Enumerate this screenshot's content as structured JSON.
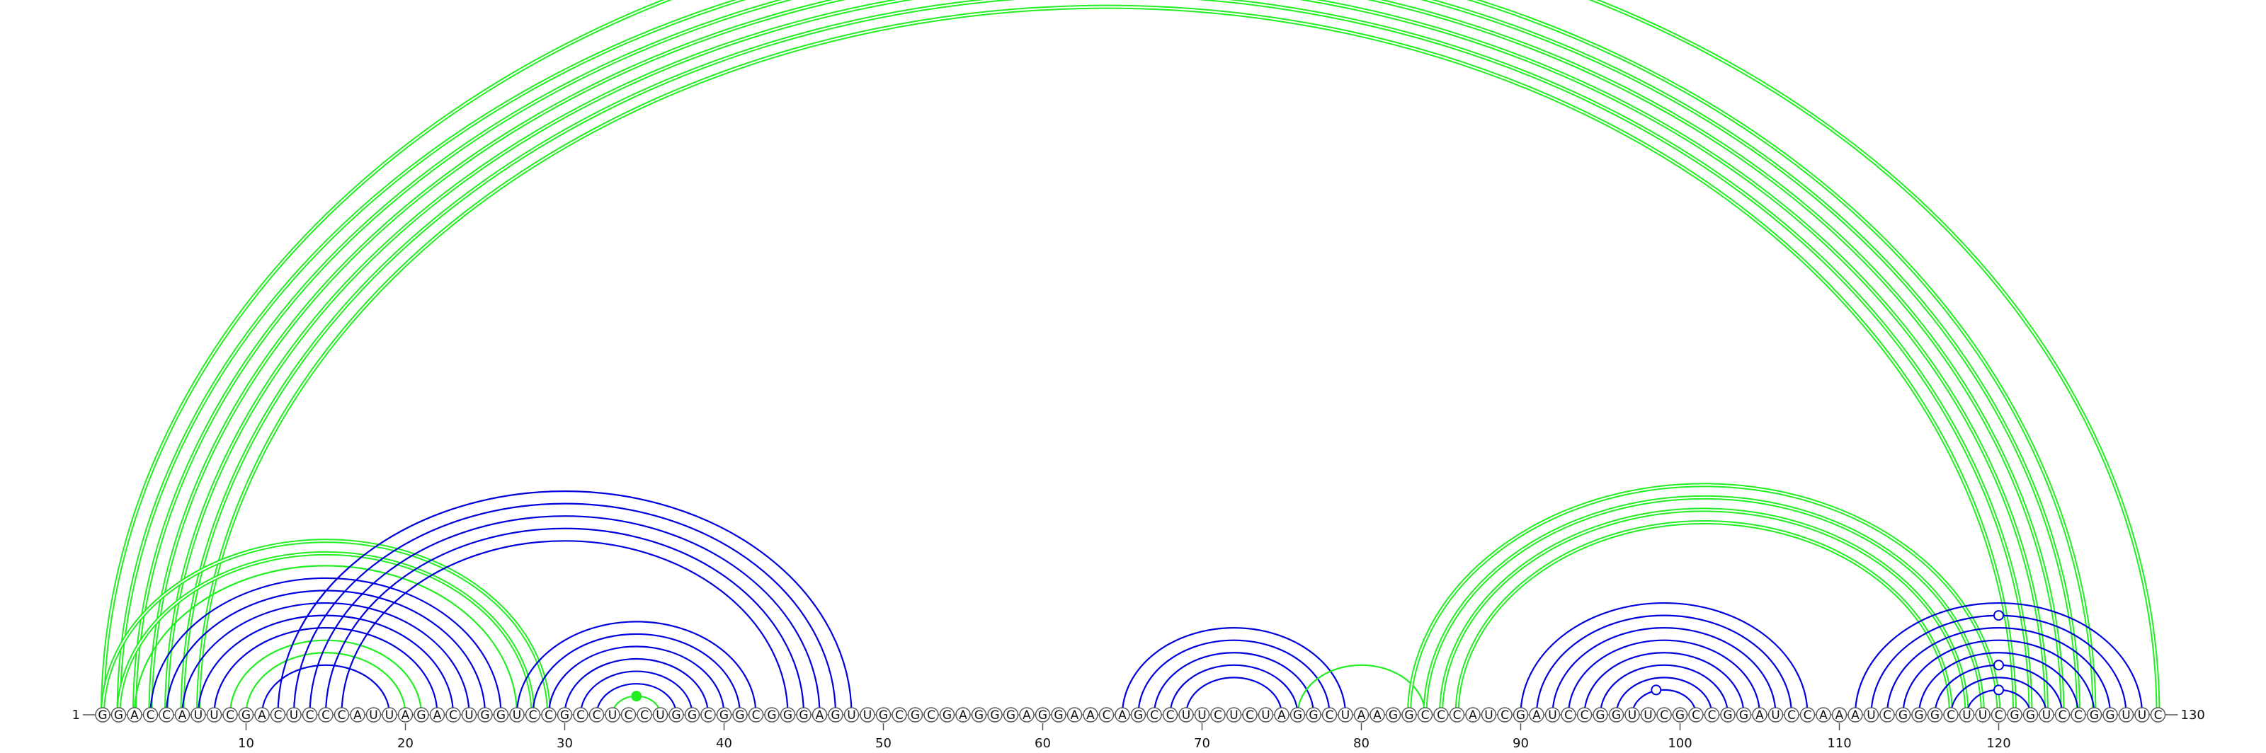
{
  "chart_data": {
    "type": "arc-diagram",
    "sequence": "GGACCAUUCGACUCCCAUUAGACUGGUCCGCCUCCUGGCGGCGGGAGUUGCGCGAGGGAGGAACAGCCUUCUCUAGGCUAAGGCCCAUCGAUCCGGUUCGCCGGAUCCAAAUCGGGCUUCGGUCCGGUUC",
    "start_label": "1",
    "end_label": "130",
    "ticks": [
      10,
      20,
      30,
      40,
      50,
      60,
      70,
      80,
      90,
      100,
      110,
      120
    ],
    "colors": {
      "blue": "#0000dd",
      "green": "#22ee22",
      "axis": "#555555"
    },
    "arcs": [
      {
        "i": 1,
        "j": 130,
        "color": "green",
        "lines": 2
      },
      {
        "i": 2,
        "j": 126,
        "color": "green",
        "lines": 2
      },
      {
        "i": 3,
        "j": 125,
        "color": "green",
        "lines": 2
      },
      {
        "i": 4,
        "j": 124,
        "color": "green",
        "lines": 2
      },
      {
        "i": 5,
        "j": 123,
        "color": "green",
        "lines": 2
      },
      {
        "i": 6,
        "j": 122,
        "color": "green",
        "lines": 2
      },
      {
        "i": 7,
        "j": 121,
        "color": "green",
        "lines": 2
      },
      {
        "i": 1,
        "j": 29,
        "color": "green",
        "lines": 2
      },
      {
        "i": 2,
        "j": 28,
        "color": "green",
        "lines": 2
      },
      {
        "i": 3,
        "j": 27,
        "color": "green",
        "lines": 1
      },
      {
        "i": 4,
        "j": 26,
        "color": "blue",
        "lines": 1
      },
      {
        "i": 5,
        "j": 25,
        "color": "blue",
        "lines": 1
      },
      {
        "i": 6,
        "j": 24,
        "color": "blue",
        "lines": 1
      },
      {
        "i": 7,
        "j": 23,
        "color": "blue",
        "lines": 1
      },
      {
        "i": 8,
        "j": 22,
        "color": "blue",
        "lines": 1
      },
      {
        "i": 9,
        "j": 21,
        "color": "green",
        "lines": 1
      },
      {
        "i": 10,
        "j": 20,
        "color": "green",
        "lines": 1
      },
      {
        "i": 11,
        "j": 19,
        "color": "blue",
        "lines": 1
      },
      {
        "i": 12,
        "j": 48,
        "color": "blue",
        "lines": 1
      },
      {
        "i": 13,
        "j": 47,
        "color": "blue",
        "lines": 1
      },
      {
        "i": 14,
        "j": 46,
        "color": "blue",
        "lines": 1
      },
      {
        "i": 15,
        "j": 45,
        "color": "blue",
        "lines": 1
      },
      {
        "i": 16,
        "j": 44,
        "color": "blue",
        "lines": 1
      },
      {
        "i": 27,
        "j": 42,
        "color": "blue",
        "lines": 1
      },
      {
        "i": 28,
        "j": 41,
        "color": "blue",
        "lines": 1
      },
      {
        "i": 29,
        "j": 40,
        "color": "blue",
        "lines": 1
      },
      {
        "i": 30,
        "j": 39,
        "color": "blue",
        "lines": 1
      },
      {
        "i": 31,
        "j": 38,
        "color": "blue",
        "lines": 1
      },
      {
        "i": 32,
        "j": 37,
        "color": "blue",
        "lines": 1
      },
      {
        "i": 33,
        "j": 36,
        "color": "green",
        "lines": 1
      },
      {
        "i": 65,
        "j": 79,
        "color": "blue",
        "lines": 1
      },
      {
        "i": 66,
        "j": 78,
        "color": "blue",
        "lines": 1
      },
      {
        "i": 67,
        "j": 77,
        "color": "blue",
        "lines": 1
      },
      {
        "i": 68,
        "j": 76,
        "color": "blue",
        "lines": 1
      },
      {
        "i": 69,
        "j": 75,
        "color": "blue",
        "lines": 1
      },
      {
        "i": 76,
        "j": 84,
        "color": "green",
        "lines": 1
      },
      {
        "i": 83,
        "j": 120,
        "color": "green",
        "lines": 2
      },
      {
        "i": 84,
        "j": 119,
        "color": "green",
        "lines": 2
      },
      {
        "i": 85,
        "j": 118,
        "color": "green",
        "lines": 2
      },
      {
        "i": 86,
        "j": 117,
        "color": "green",
        "lines": 2
      },
      {
        "i": 90,
        "j": 108,
        "color": "blue",
        "lines": 1
      },
      {
        "i": 91,
        "j": 107,
        "color": "blue",
        "lines": 1
      },
      {
        "i": 92,
        "j": 106,
        "color": "blue",
        "lines": 1
      },
      {
        "i": 93,
        "j": 105,
        "color": "blue",
        "lines": 1
      },
      {
        "i": 94,
        "j": 104,
        "color": "blue",
        "lines": 1
      },
      {
        "i": 95,
        "j": 103,
        "color": "blue",
        "lines": 1
      },
      {
        "i": 96,
        "j": 102,
        "color": "blue",
        "lines": 1
      },
      {
        "i": 97,
        "j": 101,
        "color": "blue",
        "lines": 1
      },
      {
        "i": 111,
        "j": 129,
        "color": "blue",
        "lines": 1
      },
      {
        "i": 112,
        "j": 128,
        "color": "blue",
        "lines": 1
      },
      {
        "i": 113,
        "j": 127,
        "color": "blue",
        "lines": 1
      },
      {
        "i": 114,
        "j": 126,
        "color": "blue",
        "lines": 1
      },
      {
        "i": 115,
        "j": 125,
        "color": "blue",
        "lines": 1
      },
      {
        "i": 116,
        "j": 124,
        "color": "blue",
        "lines": 1
      },
      {
        "i": 117,
        "j": 123,
        "color": "blue",
        "lines": 1
      },
      {
        "i": 118,
        "j": 122,
        "color": "blue",
        "lines": 1
      }
    ],
    "markers": [
      {
        "pos": 34.5,
        "apex_of": [
          33,
          36
        ],
        "style": "filled",
        "color": "green"
      },
      {
        "pos": 98.5,
        "apex_of": [
          97,
          101
        ],
        "style": "open",
        "color": "blue"
      },
      {
        "pos": 120,
        "apex_of": [
          118,
          122
        ],
        "style": "open",
        "color": "blue"
      },
      {
        "pos": 120,
        "apex_of": [
          116,
          124
        ],
        "style": "open",
        "color": "blue"
      },
      {
        "pos": 120,
        "apex_of": [
          112,
          128
        ],
        "style": "open",
        "color": "blue"
      }
    ]
  }
}
